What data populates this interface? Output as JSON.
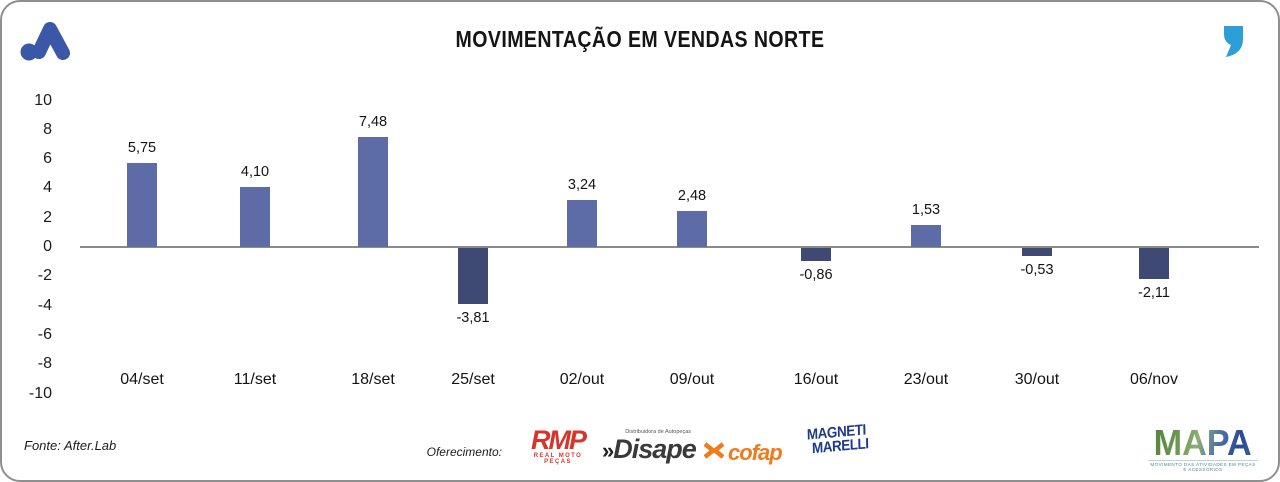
{
  "header": {
    "title": "MOVIMENTAÇÃO EM VENDAS NORTE",
    "logo_icon": "afterlab-mark-icon",
    "quote_icon": "quote-mark-icon",
    "logo_color": "#3a57a8",
    "quote_color": "#2d9fd6"
  },
  "chart_data": {
    "type": "bar",
    "title": "MOVIMENTAÇÃO EM VENDAS NORTE",
    "categories": [
      "04/set",
      "11/set",
      "18/set",
      "25/set",
      "02/out",
      "09/out",
      "16/out",
      "23/out",
      "30/out",
      "06/nov"
    ],
    "values": [
      5.75,
      4.1,
      7.48,
      -3.81,
      3.24,
      2.48,
      -0.86,
      1.53,
      -0.53,
      -2.11
    ],
    "value_labels": [
      "5,75",
      "4,10",
      "7,48",
      "-3,81",
      "3,24",
      "2,48",
      "-0,86",
      "1,53",
      "-0,53",
      "-2,11"
    ],
    "ylim": [
      -10,
      10
    ],
    "yticks": [
      10,
      8,
      6,
      4,
      2,
      0,
      -2,
      -4,
      -6,
      -8,
      -10
    ],
    "grid": false,
    "legend": false,
    "bar_color_positive": "#5d6ba7",
    "bar_color_negative": "#3e4a74",
    "axis_color": "#8a8a8a"
  },
  "footer": {
    "fonte": "Fonte: After.Lab",
    "oferecimento_label": "Oferecimento:",
    "sponsors": {
      "rmp": {
        "name": "RMP",
        "subtitle": "REAL MOTO PEÇAS"
      },
      "disape": {
        "prefix": "»",
        "name": "Disape",
        "subtitle": "Distribuidora de Autopeças"
      },
      "cofap": {
        "name": "cofap"
      },
      "magneti_marelli": {
        "line1": "MAGNETI",
        "line2": "MARELLI"
      }
    },
    "mapa": {
      "name": "MAPA",
      "subtitle": "MOVIMENTO DAS ATIVIDADES EM PEÇAS E ACESSÓRIOS"
    }
  }
}
